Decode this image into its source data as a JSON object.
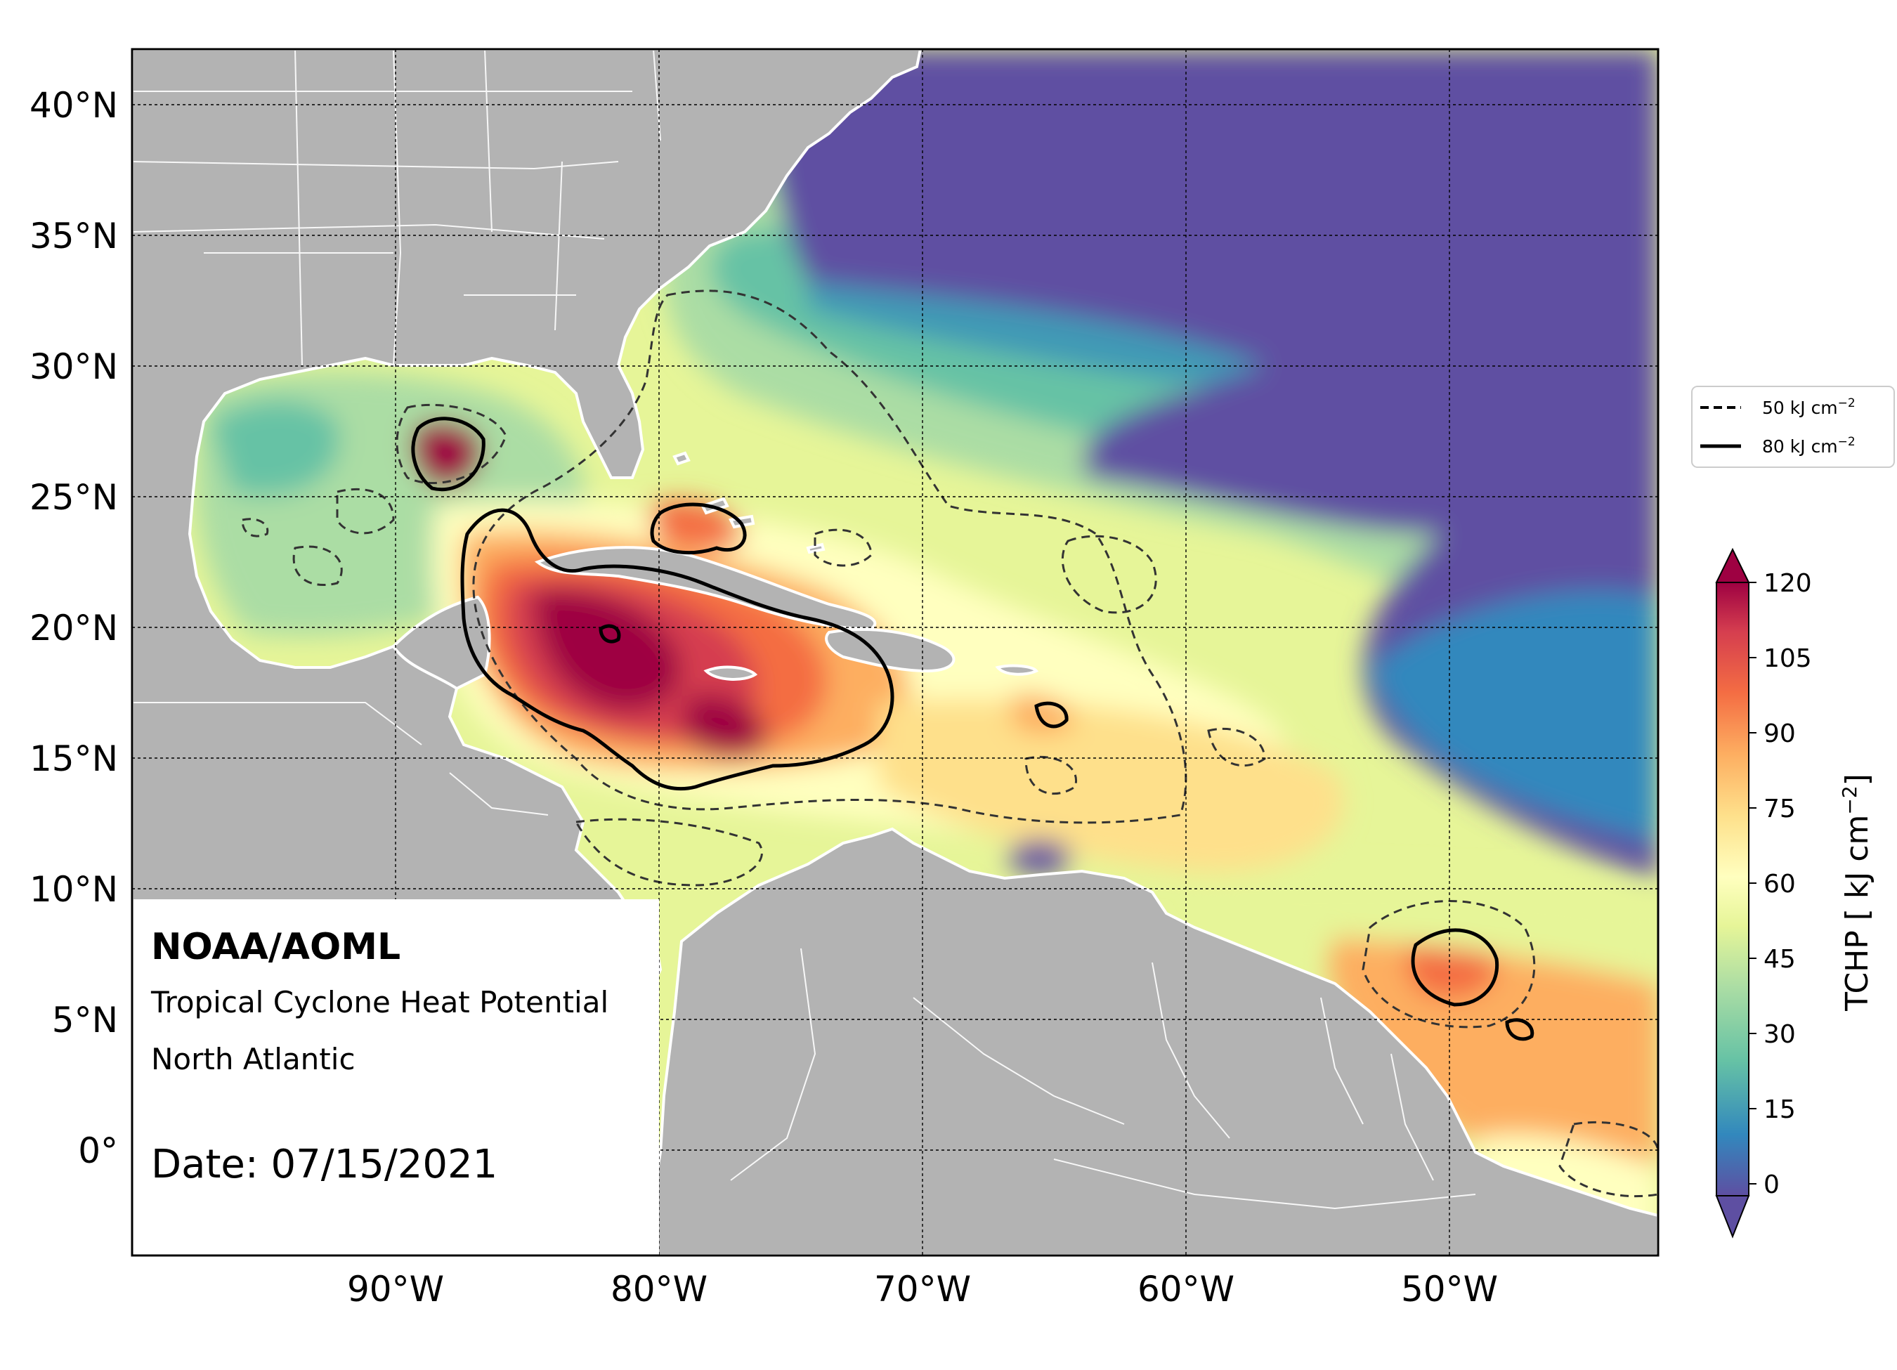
{
  "map": {
    "org": "NOAA/AOML",
    "title": "Tropical Cyclone Heat Potential",
    "region": "North Atlantic",
    "date": "Date: 07/15/2021",
    "lon_labels": [
      "90°W",
      "80°W",
      "70°W",
      "60°W",
      "50°W"
    ],
    "lat_labels": [
      "40°N",
      "35°N",
      "30°N",
      "25°N",
      "20°N",
      "15°N",
      "10°N",
      "5°N",
      "0°"
    ],
    "extent": {
      "lon": [
        -100,
        -42
      ],
      "lat": [
        -4,
        42
      ]
    },
    "land_color": "#b3b3b3",
    "border_color": "#ffffff"
  },
  "legend": {
    "entries": [
      {
        "style": "dashed",
        "value": "50",
        "unit": "kJ cm",
        "exp": "−2"
      },
      {
        "style": "solid",
        "value": "80",
        "unit": "kJ cm",
        "exp": "−2"
      }
    ]
  },
  "colorbar": {
    "label": "TCHP [ kJ cm",
    "label_exp": "−2",
    "label_close": "]",
    "ticks": [
      "120",
      "105",
      "90",
      "75",
      "60",
      "45",
      "30",
      "15",
      "0"
    ],
    "colors": [
      "#9e0142",
      "#d53e4f",
      "#f46d43",
      "#fdae61",
      "#fee08b",
      "#ffffbf",
      "#e6f598",
      "#abdda4",
      "#66c2a5",
      "#3288bd",
      "#5e4fa2"
    ]
  }
}
